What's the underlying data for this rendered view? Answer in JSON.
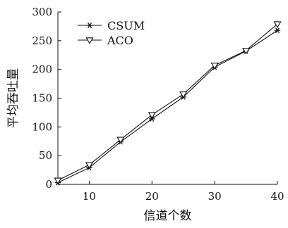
{
  "chart_data": {
    "type": "line",
    "title": "",
    "xlabel": "信道个数",
    "ylabel": "平均吞吐量",
    "x": [
      5,
      10,
      15,
      20,
      25,
      30,
      35,
      40
    ],
    "xlim": [
      5,
      40
    ],
    "ylim": [
      0,
      300
    ],
    "xticks": [
      10,
      20,
      30,
      40
    ],
    "yticks": [
      0,
      50,
      100,
      150,
      200,
      250,
      300
    ],
    "grid": false,
    "legend_position": "top-left",
    "series": [
      {
        "name": "CSUM",
        "marker": "asterisk",
        "values": [
          3,
          29,
          74,
          114,
          152,
          204,
          232,
          268
        ]
      },
      {
        "name": "ACO",
        "marker": "triangle-down",
        "values": [
          7,
          34,
          78,
          121,
          157,
          207,
          233,
          279
        ]
      }
    ]
  }
}
